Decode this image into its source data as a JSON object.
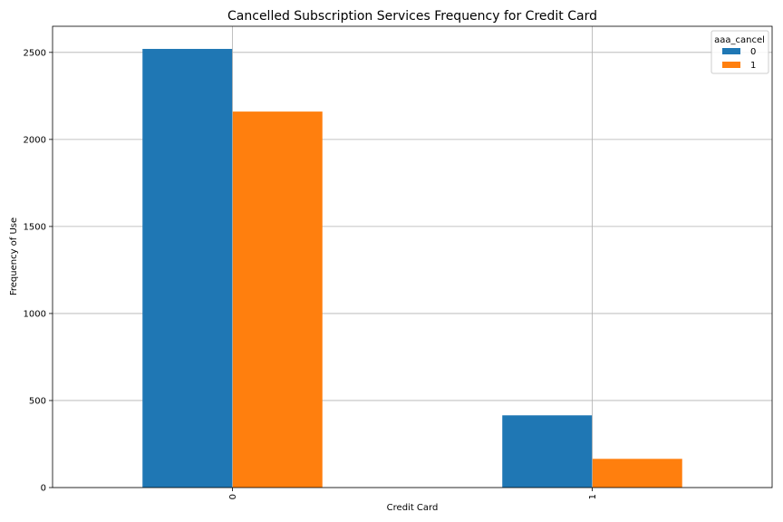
{
  "chart_data": {
    "type": "bar",
    "title": "Cancelled Subscription Services Frequency for Credit Card",
    "xlabel": "Credit Card",
    "ylabel": "Frequency of Use",
    "categories": [
      "0",
      "1"
    ],
    "series": [
      {
        "name": "0",
        "values": [
          2520,
          415
        ],
        "color": "#1f77b4"
      },
      {
        "name": "1",
        "values": [
          2160,
          165
        ],
        "color": "#ff7f0e"
      }
    ],
    "ylim": [
      0,
      2650
    ],
    "yticks": [
      0,
      500,
      1000,
      1500,
      2000,
      2500
    ],
    "grid": true,
    "legend": {
      "title": "aaa_cancel",
      "position": "top-right"
    }
  }
}
